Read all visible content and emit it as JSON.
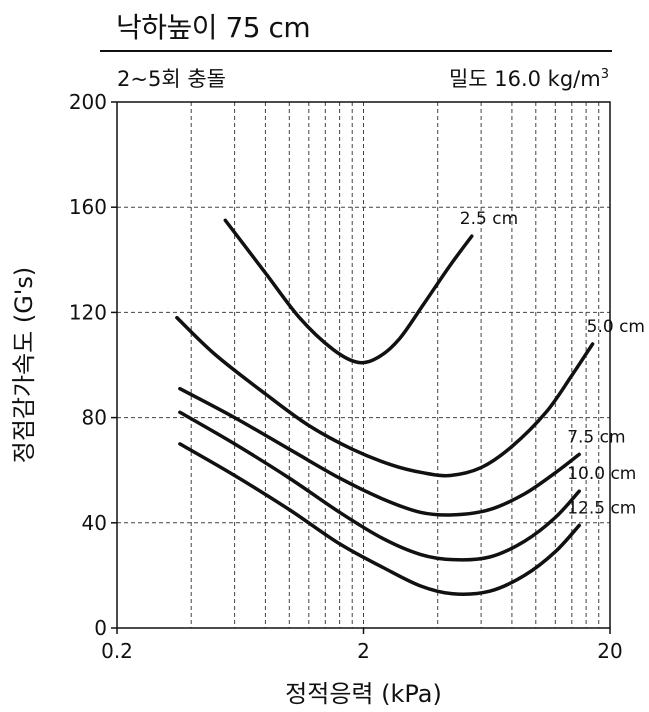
{
  "header": {
    "title": "낙하높이 75 cm",
    "left_condition": "2~5회 충돌",
    "right_condition_prefix": "밀도 16.0 kg/m",
    "right_condition_sup": "3"
  },
  "chart_data": {
    "type": "line",
    "title": "낙하높이 75 cm",
    "xlabel": "정적응력 (kPa)",
    "ylabel": "정점감가속도 (G's)",
    "x_scale": "log",
    "xlim": [
      0.2,
      20
    ],
    "ylim": [
      0,
      200
    ],
    "x_ticks": [
      "0.2",
      "2",
      "20"
    ],
    "y_ticks": [
      "0",
      "40",
      "80",
      "120",
      "160",
      "200"
    ],
    "grid": true,
    "curve_color": "#111111",
    "series": [
      {
        "name": "2.5 cm",
        "label": "2.5 cm",
        "x": [
          0.55,
          0.8,
          1.1,
          1.5,
          1.9,
          2.3,
          2.8,
          3.5,
          4.5,
          5.5
        ],
        "y": [
          155,
          135,
          118,
          106,
          101,
          103,
          110,
          123,
          138,
          149
        ]
      },
      {
        "name": "5.0 cm",
        "label": "5.0 cm",
        "x": [
          0.35,
          0.5,
          0.8,
          1.2,
          1.8,
          2.6,
          3.5,
          4.5,
          6,
          8,
          11,
          14,
          17
        ],
        "y": [
          118,
          104,
          89,
          77,
          68,
          62,
          59,
          58,
          61,
          69,
          82,
          96,
          108
        ]
      },
      {
        "name": "7.5 cm",
        "label": "7.5 cm",
        "x": [
          0.36,
          0.6,
          1.0,
          1.6,
          2.4,
          3.4,
          4.6,
          6.5,
          9,
          12,
          15
        ],
        "y": [
          91,
          80,
          68,
          57,
          49,
          44,
          43,
          45,
          51,
          59,
          66
        ]
      },
      {
        "name": "10.0 cm",
        "label": "10.0 cm",
        "x": [
          0.36,
          0.6,
          1.0,
          1.6,
          2.4,
          3.4,
          4.6,
          6.5,
          9,
          12,
          15
        ],
        "y": [
          82,
          70,
          57,
          44,
          34,
          28,
          26,
          27,
          33,
          42,
          52
        ]
      },
      {
        "name": "12.5 cm",
        "label": "12.5 cm",
        "x": [
          0.36,
          0.6,
          1.0,
          1.6,
          2.4,
          3.4,
          4.6,
          6.5,
          9,
          12,
          15
        ],
        "y": [
          70,
          58,
          45,
          32,
          23,
          16,
          13,
          14,
          20,
          29,
          39
        ]
      }
    ]
  }
}
